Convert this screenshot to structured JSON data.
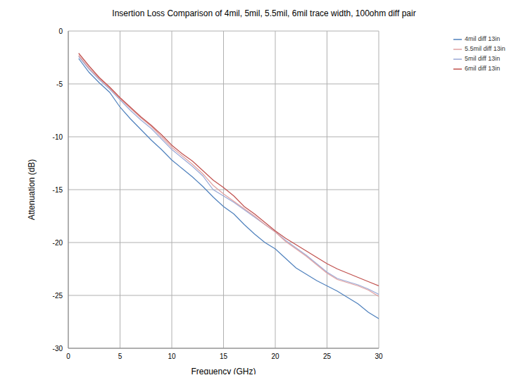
{
  "chart_data": {
    "type": "line",
    "title": "Insertion Loss Comparison of 4mil, 5mil, 5.5mil, 6mil trace width, 100ohm diff pair",
    "x_label": "Frequency (GHz)",
    "y_label": "Attenuation (dB)",
    "x": [
      1,
      2,
      3,
      4,
      5,
      6,
      7,
      8,
      9,
      10,
      11,
      12,
      13,
      14,
      15,
      16,
      17,
      18,
      19,
      20,
      21,
      22,
      23,
      24,
      25,
      26,
      27,
      28,
      29,
      30
    ],
    "series": [
      {
        "name": "4mil diff 13in",
        "color": "#4f81bd",
        "values": [
          -2.6,
          -3.9,
          -4.9,
          -5.8,
          -7.2,
          -8.3,
          -9.3,
          -10.3,
          -11.2,
          -12.2,
          -13.0,
          -13.8,
          -14.7,
          -15.7,
          -16.6,
          -17.3,
          -18.3,
          -19.2,
          -20.0,
          -20.6,
          -21.5,
          -22.4,
          -23.0,
          -23.6,
          -24.1,
          -24.6,
          -25.2,
          -25.8,
          -26.6,
          -27.2
        ]
      },
      {
        "name": "5mil diff 13in",
        "color": "#9aa9d6",
        "values": [
          -2.4,
          -3.6,
          -4.6,
          -5.5,
          -6.5,
          -7.5,
          -8.4,
          -9.2,
          -10.2,
          -11.2,
          -12.0,
          -12.8,
          -13.7,
          -15.0,
          -15.6,
          -16.2,
          -16.9,
          -17.6,
          -18.3,
          -19.0,
          -19.8,
          -20.5,
          -21.2,
          -22.0,
          -22.8,
          -23.4,
          -23.7,
          -24.0,
          -24.4,
          -24.9
        ]
      },
      {
        "name": "5.5mil diff 13in",
        "color": "#e0a0a0",
        "values": [
          -2.3,
          -3.5,
          -4.5,
          -5.4,
          -6.4,
          -7.3,
          -8.2,
          -9.0,
          -10.0,
          -11.0,
          -11.8,
          -12.6,
          -13.5,
          -14.6,
          -15.4,
          -16.1,
          -16.8,
          -17.5,
          -18.3,
          -19.0,
          -19.9,
          -20.6,
          -21.3,
          -22.1,
          -22.9,
          -23.5,
          -23.8,
          -24.1,
          -24.5,
          -25.1
        ]
      },
      {
        "name": "6mil diff 13in",
        "color": "#c0504d",
        "values": [
          -2.1,
          -3.3,
          -4.4,
          -5.3,
          -6.3,
          -7.2,
          -8.1,
          -8.9,
          -9.8,
          -10.8,
          -11.6,
          -12.3,
          -13.2,
          -14.1,
          -14.8,
          -15.6,
          -16.6,
          -17.3,
          -18.1,
          -18.9,
          -19.6,
          -20.2,
          -20.8,
          -21.4,
          -22.0,
          -22.5,
          -22.9,
          -23.3,
          -23.7,
          -24.1
        ]
      }
    ],
    "xlim": [
      0,
      30
    ],
    "xticks": [
      0,
      5,
      10,
      15,
      20,
      25,
      30
    ],
    "ylim": [
      -30,
      0
    ],
    "yticks": [
      -30,
      -25,
      -20,
      -15,
      -10,
      -5,
      0
    ],
    "grid": true,
    "legend": "right"
  }
}
